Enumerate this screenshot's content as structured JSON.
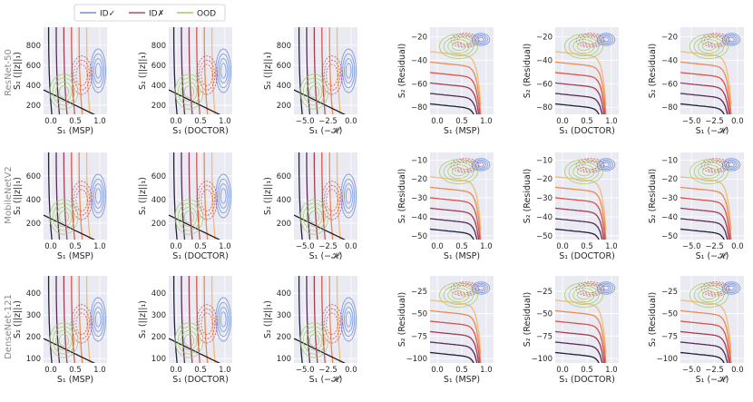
{
  "legend": {
    "entries": [
      {
        "label": "ID✓",
        "color": "#6f8fd9"
      },
      {
        "label": "ID✗",
        "color": "#c2475a"
      },
      {
        "label": "OOD",
        "color": "#a6cc6a"
      }
    ]
  },
  "rows": [
    {
      "label": "ResNet-50"
    },
    {
      "label": "MobileNetV2"
    },
    {
      "label": "DenseNet-121"
    }
  ],
  "colors": {
    "panel_bg": "#eaeaf2",
    "grid": "#ffffff",
    "contour_ramp": [
      "#22203a",
      "#5a2a55",
      "#a33b55",
      "#d9534a",
      "#ee8a4e",
      "#f6bb74"
    ]
  },
  "chart_data": [
    {
      "type": "contour",
      "row": "ResNet-50",
      "xlabel": "S₁ (MSP)",
      "ylabel": "S₂ (||z||₁)",
      "xlim": [
        -0.15,
        1.15
      ],
      "ylim": [
        110,
        980
      ],
      "xticks": [
        "0.0",
        "0.5",
        "1.0"
      ],
      "yticks": [
        "200",
        "400",
        "600",
        "800"
      ]
    },
    {
      "type": "contour",
      "row": "ResNet-50",
      "xlabel": "S₁ (DOCTOR)",
      "ylabel": "S₂ (||z||₁)",
      "xlim": [
        -0.15,
        1.15
      ],
      "ylim": [
        110,
        980
      ],
      "xticks": [
        "0.0",
        "0.5",
        "1.0"
      ],
      "yticks": [
        "200",
        "400",
        "600",
        "800"
      ]
    },
    {
      "type": "contour",
      "row": "ResNet-50",
      "xlabel": "S₁ (−𝓗)",
      "ylabel": "S₂ (||z||₁)",
      "xlim": [
        -6.2,
        0.7
      ],
      "ylim": [
        110,
        980
      ],
      "xticks": [
        "−5.0",
        "−2.5",
        "0.0"
      ],
      "yticks": [
        "200",
        "400",
        "600",
        "800"
      ]
    },
    {
      "type": "contour",
      "row": "ResNet-50",
      "xlabel": "S₁ (MSP)",
      "ylabel": "S₂ (Residual)",
      "xlim": [
        -0.15,
        1.15
      ],
      "ylim": [
        -86,
        -12
      ],
      "xticks": [
        "0.0",
        "0.5",
        "1.0"
      ],
      "yticks": [
        "−80",
        "−60",
        "−40",
        "−20"
      ]
    },
    {
      "type": "contour",
      "row": "ResNet-50",
      "xlabel": "S₁ (DOCTOR)",
      "ylabel": "S₂ (Residual)",
      "xlim": [
        -0.15,
        1.15
      ],
      "ylim": [
        -86,
        -12
      ],
      "xticks": [
        "0.0",
        "0.5",
        "1.0"
      ],
      "yticks": [
        "−80",
        "−60",
        "−40",
        "−20"
      ]
    },
    {
      "type": "contour",
      "row": "ResNet-50",
      "xlabel": "S₁ (−𝓗)",
      "ylabel": "S₂ (Residual)",
      "xlim": [
        -6.2,
        0.7
      ],
      "ylim": [
        -86,
        -12
      ],
      "xticks": [
        "−5.0",
        "−2.5",
        "0.0"
      ],
      "yticks": [
        "−80",
        "−60",
        "−40",
        "−20"
      ]
    },
    {
      "type": "contour",
      "row": "MobileNetV2",
      "xlabel": "S₁ (MSP)",
      "ylabel": "S₂ (||z||₁)",
      "xlim": [
        -0.15,
        1.15
      ],
      "ylim": [
        60,
        800
      ],
      "xticks": [
        "0.0",
        "0.5",
        "1.0"
      ],
      "yticks": [
        "200",
        "400",
        "600"
      ]
    },
    {
      "type": "contour",
      "row": "MobileNetV2",
      "xlabel": "S₁ (DOCTOR)",
      "ylabel": "S₂ (||z||₁)",
      "xlim": [
        -0.15,
        1.15
      ],
      "ylim": [
        60,
        800
      ],
      "xticks": [
        "0.0",
        "0.5",
        "1.0"
      ],
      "yticks": [
        "200",
        "400",
        "600"
      ]
    },
    {
      "type": "contour",
      "row": "MobileNetV2",
      "xlabel": "S₁ (−𝓗)",
      "ylabel": "S₂ (||z||₁)",
      "xlim": [
        -6.2,
        0.7
      ],
      "ylim": [
        60,
        800
      ],
      "xticks": [
        "−5.0",
        "−2.5",
        "0.0"
      ],
      "yticks": [
        "200",
        "400",
        "600"
      ]
    },
    {
      "type": "contour",
      "row": "MobileNetV2",
      "xlabel": "S₁ (MSP)",
      "ylabel": "S₂ (Residual)",
      "xlim": [
        -0.15,
        1.15
      ],
      "ylim": [
        -52,
        -6
      ],
      "xticks": [
        "0.0",
        "0.5",
        "1.0"
      ],
      "yticks": [
        "−50",
        "−40",
        "−30",
        "−20",
        "−10"
      ]
    },
    {
      "type": "contour",
      "row": "MobileNetV2",
      "xlabel": "S₁ (DOCTOR)",
      "ylabel": "S₂ (Residual)",
      "xlim": [
        -0.15,
        1.15
      ],
      "ylim": [
        -52,
        -6
      ],
      "xticks": [
        "0.0",
        "0.5",
        "1.0"
      ],
      "yticks": [
        "−50",
        "−40",
        "−30",
        "−20",
        "−10"
      ]
    },
    {
      "type": "contour",
      "row": "MobileNetV2",
      "xlabel": "S₁ (−𝓗)",
      "ylabel": "S₂ (Residual)",
      "xlim": [
        -6.2,
        0.7
      ],
      "ylim": [
        -52,
        -6
      ],
      "xticks": [
        "−5.0",
        "−2.5",
        "0.0"
      ],
      "yticks": [
        "−50",
        "−40",
        "−30",
        "−20",
        "−10"
      ]
    },
    {
      "type": "contour",
      "row": "DenseNet-121",
      "xlabel": "S₁ (MSP)",
      "ylabel": "S₂ (||z||₁)",
      "xlim": [
        -0.15,
        1.15
      ],
      "ylim": [
        80,
        480
      ],
      "xticks": [
        "0.0",
        "0.5",
        "1.0"
      ],
      "yticks": [
        "100",
        "200",
        "300",
        "400"
      ]
    },
    {
      "type": "contour",
      "row": "DenseNet-121",
      "xlabel": "S₁ (DOCTOR)",
      "ylabel": "S₂ (||z||₁)",
      "xlim": [
        -0.15,
        1.15
      ],
      "ylim": [
        80,
        480
      ],
      "xticks": [
        "0.0",
        "0.5",
        "1.0"
      ],
      "yticks": [
        "100",
        "200",
        "300",
        "400"
      ]
    },
    {
      "type": "contour",
      "row": "DenseNet-121",
      "xlabel": "S₁ (−𝓗)",
      "ylabel": "S₂ (||z||₁)",
      "xlim": [
        -6.2,
        0.7
      ],
      "ylim": [
        80,
        480
      ],
      "xticks": [
        "−5.0",
        "−2.5",
        "0.0"
      ],
      "yticks": [
        "100",
        "200",
        "300",
        "400"
      ]
    },
    {
      "type": "contour",
      "row": "DenseNet-121",
      "xlabel": "S₁ (MSP)",
      "ylabel": "S₂ (Residual)",
      "xlim": [
        -0.15,
        1.15
      ],
      "ylim": [
        -105,
        -8
      ],
      "xticks": [
        "0.0",
        "0.5",
        "1.0"
      ],
      "yticks": [
        "−100",
        "−75",
        "−50",
        "−25"
      ]
    },
    {
      "type": "contour",
      "row": "DenseNet-121",
      "xlabel": "S₁ (DOCTOR)",
      "ylabel": "S₂ (Residual)",
      "xlim": [
        -0.15,
        1.15
      ],
      "ylim": [
        -105,
        -8
      ],
      "xticks": [
        "0.0",
        "0.5",
        "1.0"
      ],
      "yticks": [
        "−100",
        "−75",
        "−50",
        "−25"
      ]
    },
    {
      "type": "contour",
      "row": "DenseNet-121",
      "xlabel": "S₁ (−𝓗)",
      "ylabel": "S₂ (Residual)",
      "xlim": [
        -6.2,
        0.7
      ],
      "ylim": [
        -105,
        -8
      ],
      "xticks": [
        "−5.0",
        "−2.5",
        "0.0"
      ],
      "yticks": [
        "−100",
        "−75",
        "−50",
        "−25"
      ]
    }
  ]
}
